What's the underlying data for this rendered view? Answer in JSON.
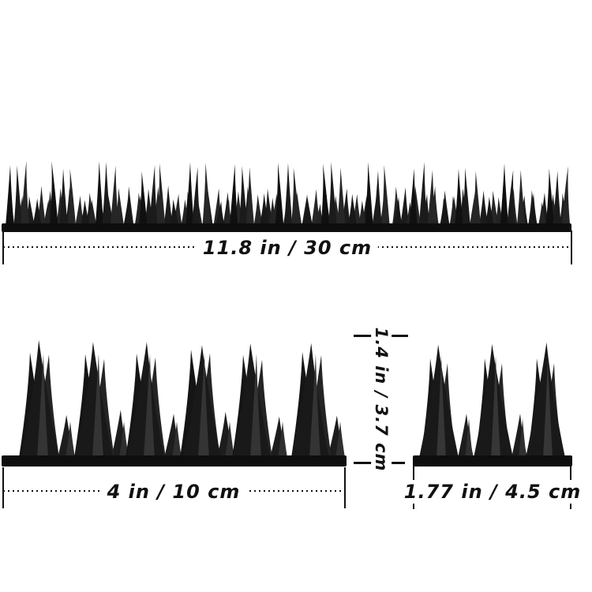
{
  "figure": {
    "background": "#ffffff",
    "ink_color": "#111111",
    "spike_color": "#161616"
  },
  "strips": {
    "long": {
      "name": "spike-strip-long",
      "length_label": "11.8 in / 30 cm"
    },
    "medium": {
      "name": "spike-strip-medium",
      "length_label": "4 in / 10 cm"
    },
    "short": {
      "name": "spike-strip-short",
      "length_label": "1.77 in / 4.5 cm"
    }
  },
  "height_measure": {
    "label": "1.4 in / 3.7 cm"
  }
}
